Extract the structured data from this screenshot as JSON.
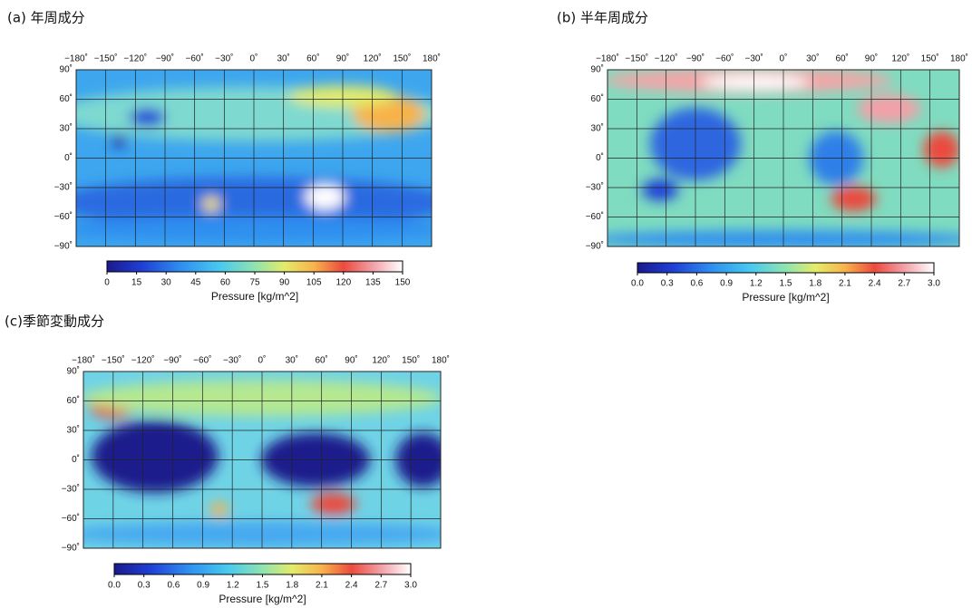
{
  "panels": [
    {
      "title": "(a) 年周成分",
      "lon_ticks": [
        "−180˚",
        "−150˚",
        "−120˚",
        "−90˚",
        "−60˚",
        "−30˚",
        "0˚",
        "30˚",
        "60˚",
        "90˚",
        "120˚",
        "150˚",
        "180˚"
      ],
      "lat_ticks": [
        "90˚",
        "60˚",
        "30˚",
        "0˚",
        "−30˚",
        "−60˚",
        "−90˚"
      ],
      "colorbar": {
        "ticks": [
          "0",
          "15",
          "30",
          "45",
          "60",
          "75",
          "90",
          "105",
          "120",
          "135",
          "150"
        ],
        "label": "Pressure [kg/m^2]"
      }
    },
    {
      "title": "(b) 半年周成分",
      "lon_ticks": [
        "−180˚",
        "−150˚",
        "−120˚",
        "−90˚",
        "−60˚",
        "−30˚",
        "0˚",
        "30˚",
        "60˚",
        "90˚",
        "120˚",
        "150˚",
        "180˚"
      ],
      "lat_ticks": [
        "90˚",
        "60˚",
        "30˚",
        "0˚",
        "−30˚",
        "−60˚",
        "−90˚"
      ],
      "colorbar": {
        "ticks": [
          "0.0",
          "0.3",
          "0.6",
          "0.9",
          "1.2",
          "1.5",
          "1.8",
          "2.1",
          "2.4",
          "2.7",
          "3.0"
        ],
        "label": "Pressure [kg/m^2]"
      }
    },
    {
      "title": "(c)季節変動成分",
      "lon_ticks": [
        "−180˚",
        "−150˚",
        "−120˚",
        "−90˚",
        "−60˚",
        "−30˚",
        "0˚",
        "30˚",
        "60˚",
        "90˚",
        "120˚",
        "150˚",
        "180˚"
      ],
      "lat_ticks": [
        "90˚",
        "60˚",
        "30˚",
        "0˚",
        "−30˚",
        "−60˚",
        "−90˚"
      ],
      "colorbar": {
        "ticks": [
          "0.0",
          "0.3",
          "0.6",
          "0.9",
          "1.2",
          "1.5",
          "1.8",
          "2.1",
          "2.4",
          "2.7",
          "3.0"
        ],
        "label": "Pressure [kg/m^2]"
      }
    }
  ]
}
